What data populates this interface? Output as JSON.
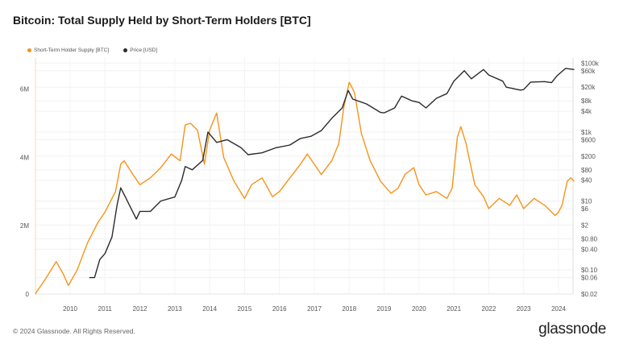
{
  "title": "Bitcoin: Total Supply Held by Short-Term Holders [BTC]",
  "footer": "© 2024 Glassnode. All Rights Reserved.",
  "logo": "glassnode",
  "colors": {
    "supply": "#f7931a",
    "price": "#2b2b2b"
  },
  "chart_data": {
    "type": "line",
    "title": "Bitcoin: Total Supply Held by Short-Term Holders [BTC]",
    "legend_position": "top-left",
    "grid": true,
    "x_ticks": [
      "2010",
      "2011",
      "2012",
      "2013",
      "2014",
      "2015",
      "2016",
      "2017",
      "2018",
      "2019",
      "2020",
      "2021",
      "2022",
      "2023",
      "2024"
    ],
    "xlim": [
      2009.0,
      2024.45
    ],
    "y_left": {
      "ticks": [
        "0",
        "2M",
        "4M",
        "6M"
      ],
      "tick_values": [
        0,
        2000000,
        4000000,
        6000000
      ],
      "lim": [
        0,
        6800000
      ]
    },
    "y_right": {
      "scale": "log",
      "ticks": [
        "$0.02",
        "$0.06",
        "$0.10",
        "$0.40",
        "$0.80",
        "$2",
        "$6",
        "$10",
        "$40",
        "$80",
        "$200",
        "$600",
        "$1k",
        "$4k",
        "$8k",
        "$20k",
        "$60k",
        "$100k"
      ],
      "tick_values": [
        0.02,
        0.06,
        0.1,
        0.4,
        0.8,
        2,
        6,
        10,
        40,
        80,
        200,
        600,
        1000,
        4000,
        8000,
        20000,
        60000,
        100000
      ],
      "lim": [
        0.02,
        100000
      ]
    },
    "series": [
      {
        "name": "Short-Term Holder Supply [BTC]",
        "axis": "left",
        "x": [
          2009.0,
          2009.3,
          2009.6,
          2009.8,
          2009.95,
          2010.2,
          2010.5,
          2010.8,
          2011.0,
          2011.3,
          2011.45,
          2011.55,
          2011.8,
          2012.0,
          2012.3,
          2012.6,
          2012.9,
          2013.15,
          2013.3,
          2013.45,
          2013.65,
          2013.85,
          2014.0,
          2014.2,
          2014.4,
          2014.7,
          2015.0,
          2015.2,
          2015.5,
          2015.8,
          2016.0,
          2016.3,
          2016.6,
          2016.8,
          2017.0,
          2017.2,
          2017.5,
          2017.7,
          2017.85,
          2018.0,
          2018.15,
          2018.35,
          2018.6,
          2018.9,
          2019.2,
          2019.4,
          2019.6,
          2019.85,
          2020.0,
          2020.2,
          2020.5,
          2020.8,
          2020.95,
          2021.1,
          2021.2,
          2021.35,
          2021.6,
          2021.85,
          2022.0,
          2022.3,
          2022.6,
          2022.8,
          2023.0,
          2023.3,
          2023.6,
          2023.9,
          2024.0,
          2024.1,
          2024.25,
          2024.35,
          2024.45
        ],
        "values": [
          0,
          450000,
          950000,
          600000,
          250000,
          700000,
          1500000,
          2100000,
          2400000,
          3000000,
          3800000,
          3900000,
          3500000,
          3200000,
          3400000,
          3700000,
          4100000,
          3900000,
          4950000,
          5000000,
          4800000,
          3800000,
          4800000,
          5300000,
          4000000,
          3300000,
          2800000,
          3200000,
          3400000,
          2850000,
          3000000,
          3400000,
          3800000,
          4100000,
          3800000,
          3500000,
          3900000,
          4400000,
          5500000,
          6200000,
          5900000,
          4700000,
          3900000,
          3300000,
          2950000,
          3100000,
          3500000,
          3700000,
          3200000,
          2900000,
          3000000,
          2800000,
          3100000,
          4600000,
          4900000,
          4400000,
          3200000,
          2850000,
          2500000,
          2800000,
          2600000,
          2900000,
          2500000,
          2800000,
          2600000,
          2300000,
          2400000,
          2600000,
          3300000,
          3400000,
          3300000
        ]
      },
      {
        "name": "Price [USD]",
        "axis": "right",
        "x": [
          2010.55,
          2010.7,
          2010.85,
          2011.0,
          2011.2,
          2011.35,
          2011.45,
          2011.6,
          2011.9,
          2012.0,
          2012.3,
          2012.6,
          2013.0,
          2013.2,
          2013.3,
          2013.5,
          2013.8,
          2013.95,
          2014.2,
          2014.5,
          2014.9,
          2015.1,
          2015.5,
          2015.9,
          2016.3,
          2016.6,
          2016.9,
          2017.2,
          2017.5,
          2017.8,
          2017.97,
          2018.1,
          2018.5,
          2018.9,
          2019.0,
          2019.3,
          2019.5,
          2019.8,
          2020.0,
          2020.2,
          2020.5,
          2020.8,
          2021.0,
          2021.3,
          2021.5,
          2021.85,
          2022.0,
          2022.4,
          2022.5,
          2022.9,
          2023.0,
          2023.2,
          2023.6,
          2023.8,
          2023.95,
          2024.2,
          2024.45
        ],
        "values": [
          0.06,
          0.06,
          0.2,
          0.3,
          0.9,
          8,
          24,
          12,
          3,
          5,
          5,
          10,
          13,
          40,
          100,
          80,
          150,
          1000,
          500,
          600,
          350,
          220,
          250,
          350,
          420,
          650,
          750,
          1100,
          2500,
          5000,
          16000,
          9000,
          6500,
          3700,
          3600,
          5000,
          11000,
          8000,
          7200,
          5000,
          9500,
          13000,
          30000,
          60000,
          35000,
          65000,
          45000,
          30000,
          20000,
          16500,
          17000,
          28000,
          29000,
          27000,
          42000,
          70000,
          65000
        ]
      }
    ]
  }
}
